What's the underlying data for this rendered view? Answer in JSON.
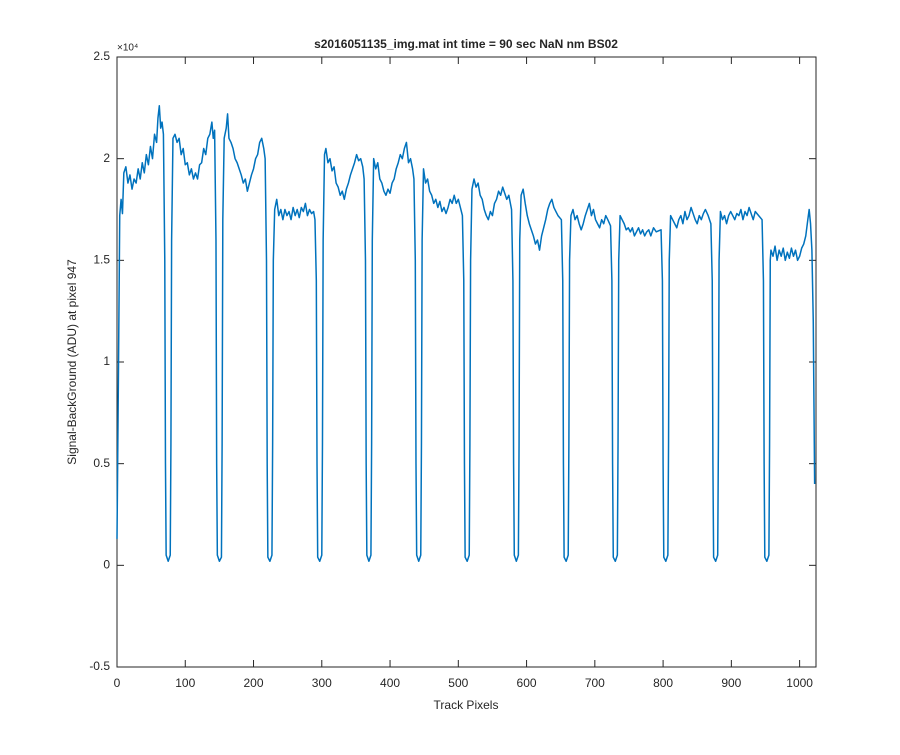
{
  "chart_data": {
    "type": "line",
    "title": "s2016051135_img.mat int time = 90 sec  NaN nm BS02",
    "x_label": "Track Pixels",
    "y_label": "Signal-BackGround (ADU) at pixel 947",
    "y_multiplier": "×10⁴",
    "xlim": [
      0,
      1024
    ],
    "xticks": [
      0,
      100,
      200,
      300,
      400,
      500,
      600,
      700,
      800,
      900,
      1000
    ],
    "ylim": [
      -0.5,
      2.5
    ],
    "yticks": [
      -0.5,
      0,
      0.5,
      1,
      1.5,
      2,
      2.5
    ],
    "grid": false,
    "series": [
      {
        "color": "#0072bd",
        "x": [
          0,
          2,
          4,
          6,
          8,
          10,
          13,
          16,
          19,
          22,
          25,
          28,
          31,
          34,
          37,
          40,
          43,
          46,
          49,
          52,
          55,
          58,
          60,
          62,
          64,
          66,
          68,
          70,
          71,
          72,
          75,
          78,
          79,
          80,
          82,
          85,
          88,
          91,
          94,
          97,
          100,
          103,
          106,
          109,
          112,
          115,
          118,
          121,
          124,
          127,
          130,
          133,
          136,
          139,
          141,
          143,
          145,
          146,
          147,
          150,
          153,
          154,
          155,
          157,
          160,
          162,
          164,
          167,
          170,
          173,
          176,
          179,
          182,
          185,
          188,
          191,
          194,
          197,
          200,
          203,
          206,
          209,
          212,
          215,
          217,
          219,
          220,
          221,
          224,
          227,
          228,
          229,
          231,
          234,
          237,
          240,
          243,
          246,
          249,
          252,
          255,
          258,
          261,
          264,
          267,
          270,
          273,
          276,
          279,
          282,
          285,
          288,
          290,
          292,
          293,
          294,
          297,
          300,
          301,
          302,
          304,
          306,
          309,
          312,
          315,
          318,
          321,
          324,
          327,
          330,
          333,
          336,
          339,
          342,
          345,
          348,
          351,
          354,
          357,
          360,
          362,
          364,
          365,
          366,
          369,
          372,
          373,
          374,
          376,
          379,
          382,
          385,
          388,
          391,
          394,
          397,
          400,
          403,
          406,
          409,
          412,
          415,
          418,
          421,
          424,
          427,
          430,
          433,
          435,
          437,
          438,
          439,
          442,
          445,
          446,
          447,
          449,
          452,
          455,
          458,
          461,
          464,
          467,
          470,
          473,
          476,
          479,
          482,
          485,
          488,
          491,
          494,
          497,
          500,
          503,
          506,
          508,
          509,
          510,
          513,
          516,
          517,
          518,
          520,
          523,
          526,
          529,
          532,
          535,
          538,
          541,
          544,
          547,
          550,
          553,
          556,
          559,
          562,
          565,
          568,
          571,
          574,
          578,
          580,
          581,
          582,
          585,
          588,
          589,
          590,
          592,
          595,
          598,
          601,
          604,
          607,
          610,
          613,
          616,
          619,
          622,
          625,
          628,
          631,
          634,
          637,
          640,
          643,
          646,
          651,
          653,
          654,
          655,
          658,
          661,
          662,
          663,
          665,
          668,
          671,
          674,
          677,
          680,
          683,
          686,
          689,
          692,
          695,
          698,
          701,
          704,
          707,
          710,
          713,
          716,
          719,
          723,
          725,
          726,
          727,
          730,
          733,
          734,
          735,
          737,
          740,
          743,
          746,
          749,
          752,
          755,
          758,
          761,
          764,
          767,
          770,
          773,
          776,
          779,
          782,
          786,
          790,
          797,
          799,
          800,
          801,
          804,
          807,
          808,
          809,
          811,
          814,
          817,
          820,
          823,
          826,
          829,
          832,
          835,
          838,
          841,
          844,
          847,
          850,
          853,
          856,
          859,
          862,
          866,
          870,
          872,
          873,
          874,
          877,
          880,
          881,
          882,
          884,
          887,
          890,
          893,
          896,
          899,
          902,
          905,
          908,
          911,
          914,
          917,
          920,
          923,
          926,
          929,
          932,
          935,
          940,
          945,
          947,
          948,
          949,
          952,
          955,
          956,
          957,
          958,
          961,
          964,
          967,
          970,
          973,
          976,
          979,
          982,
          985,
          988,
          991,
          994,
          997,
          1000,
          1003,
          1006,
          1009,
          1012,
          1014,
          1016,
          1018,
          1020,
          1022
        ],
        "values": [
          0.13,
          0.9,
          1.72,
          1.8,
          1.73,
          1.93,
          1.96,
          1.88,
          1.92,
          1.85,
          1.9,
          1.88,
          1.95,
          1.9,
          1.98,
          1.93,
          2.02,
          1.97,
          2.06,
          2.0,
          2.12,
          2.08,
          2.2,
          2.26,
          2.15,
          2.18,
          2.12,
          1.5,
          0.5,
          0.05,
          0.02,
          0.05,
          0.6,
          1.6,
          2.1,
          2.12,
          2.08,
          2.1,
          2.02,
          2.05,
          1.97,
          1.98,
          1.92,
          1.95,
          1.9,
          1.93,
          1.9,
          1.97,
          1.98,
          2.05,
          2.02,
          2.1,
          2.12,
          2.18,
          2.1,
          2.14,
          1.6,
          0.5,
          0.05,
          0.02,
          0.04,
          0.6,
          1.7,
          2.1,
          2.15,
          2.22,
          2.1,
          2.08,
          2.05,
          2.0,
          1.98,
          1.95,
          1.92,
          1.88,
          1.9,
          1.84,
          1.88,
          1.92,
          1.95,
          2.0,
          2.02,
          2.08,
          2.1,
          2.05,
          2.0,
          1.5,
          0.5,
          0.04,
          0.02,
          0.05,
          0.6,
          1.5,
          1.75,
          1.8,
          1.72,
          1.75,
          1.7,
          1.75,
          1.72,
          1.74,
          1.7,
          1.76,
          1.72,
          1.75,
          1.71,
          1.76,
          1.74,
          1.78,
          1.72,
          1.75,
          1.73,
          1.74,
          1.7,
          1.4,
          0.5,
          0.04,
          0.02,
          0.05,
          0.6,
          1.6,
          2.02,
          2.05,
          1.98,
          2.0,
          1.94,
          1.96,
          1.88,
          1.86,
          1.82,
          1.84,
          1.8,
          1.85,
          1.88,
          1.92,
          1.95,
          1.98,
          2.02,
          1.99,
          2.0,
          1.96,
          1.9,
          1.5,
          0.5,
          0.05,
          0.02,
          0.05,
          0.6,
          1.6,
          2.0,
          1.95,
          1.98,
          1.9,
          1.88,
          1.84,
          1.82,
          1.85,
          1.83,
          1.88,
          1.9,
          1.95,
          1.98,
          2.02,
          2.0,
          2.05,
          2.08,
          1.98,
          2.0,
          1.95,
          1.9,
          1.5,
          0.5,
          0.05,
          0.02,
          0.05,
          0.6,
          1.6,
          1.95,
          1.88,
          1.9,
          1.84,
          1.82,
          1.78,
          1.8,
          1.76,
          1.79,
          1.74,
          1.76,
          1.73,
          1.76,
          1.8,
          1.78,
          1.82,
          1.78,
          1.8,
          1.76,
          1.72,
          1.4,
          0.5,
          0.04,
          0.02,
          0.05,
          0.6,
          1.5,
          1.85,
          1.9,
          1.86,
          1.88,
          1.82,
          1.8,
          1.75,
          1.72,
          1.7,
          1.74,
          1.72,
          1.78,
          1.8,
          1.84,
          1.82,
          1.86,
          1.83,
          1.8,
          1.82,
          1.75,
          1.4,
          0.5,
          0.05,
          0.02,
          0.05,
          0.6,
          1.6,
          1.82,
          1.85,
          1.78,
          1.72,
          1.68,
          1.65,
          1.62,
          1.58,
          1.6,
          1.55,
          1.62,
          1.66,
          1.7,
          1.75,
          1.78,
          1.8,
          1.76,
          1.74,
          1.72,
          1.7,
          1.4,
          0.5,
          0.04,
          0.02,
          0.05,
          0.6,
          1.5,
          1.72,
          1.75,
          1.7,
          1.72,
          1.68,
          1.65,
          1.68,
          1.72,
          1.75,
          1.78,
          1.72,
          1.75,
          1.7,
          1.68,
          1.66,
          1.7,
          1.68,
          1.72,
          1.7,
          1.67,
          1.4,
          0.5,
          0.04,
          0.02,
          0.05,
          0.6,
          1.5,
          1.72,
          1.7,
          1.68,
          1.65,
          1.66,
          1.64,
          1.66,
          1.62,
          1.64,
          1.66,
          1.63,
          1.65,
          1.62,
          1.64,
          1.65,
          1.62,
          1.66,
          1.64,
          1.65,
          1.4,
          0.5,
          0.04,
          0.02,
          0.05,
          0.6,
          1.5,
          1.72,
          1.7,
          1.68,
          1.66,
          1.7,
          1.72,
          1.68,
          1.74,
          1.7,
          1.72,
          1.76,
          1.73,
          1.7,
          1.68,
          1.72,
          1.7,
          1.73,
          1.75,
          1.72,
          1.68,
          1.4,
          0.5,
          0.04,
          0.02,
          0.05,
          0.6,
          1.5,
          1.74,
          1.7,
          1.72,
          1.68,
          1.72,
          1.74,
          1.72,
          1.7,
          1.73,
          1.72,
          1.75,
          1.7,
          1.74,
          1.72,
          1.76,
          1.73,
          1.7,
          1.74,
          1.72,
          1.7,
          1.4,
          0.5,
          0.04,
          0.02,
          0.05,
          0.6,
          1.5,
          1.55,
          1.52,
          1.57,
          1.5,
          1.55,
          1.52,
          1.56,
          1.5,
          1.54,
          1.51,
          1.56,
          1.52,
          1.55,
          1.5,
          1.52,
          1.56,
          1.58,
          1.62,
          1.7,
          1.75,
          1.68,
          1.55,
          1.2,
          0.4
        ]
      }
    ]
  }
}
